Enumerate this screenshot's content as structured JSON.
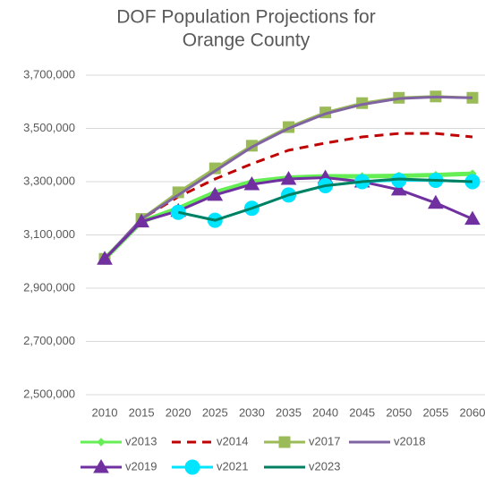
{
  "chart_data": {
    "type": "line",
    "title": [
      "DOF Population Projections for",
      "Orange County"
    ],
    "categories": [
      "2010",
      "2015",
      "2020",
      "2025",
      "2030",
      "2035",
      "2040",
      "2045",
      "2050",
      "2055",
      "2060"
    ],
    "ylim": [
      2500000,
      3700000
    ],
    "yticks": [
      {
        "value": 2500000,
        "label": "2,500,000"
      },
      {
        "value": 2700000,
        "label": "2,700,000"
      },
      {
        "value": 2900000,
        "label": "2,900,000"
      },
      {
        "value": 3100000,
        "label": "3,100,000"
      },
      {
        "value": 3300000,
        "label": "3,300,000"
      },
      {
        "value": 3500000,
        "label": "3,500,000"
      },
      {
        "value": 3700000,
        "label": "3,700,000"
      }
    ],
    "grid": true,
    "legend": "bottom",
    "series": [
      {
        "name": "v2013",
        "color": "#66ee55",
        "marker": "diamond",
        "values": [
          3010000,
          3150000,
          3200000,
          3260000,
          3300000,
          3315000,
          3320000,
          3320000,
          3322000,
          3325000,
          3330000
        ]
      },
      {
        "name": "v2014",
        "color": "#c00000",
        "dash": true,
        "values": [
          3010000,
          3160000,
          3243000,
          3310000,
          3367000,
          3418000,
          3445000,
          3468000,
          3481000,
          3481000,
          3468000
        ]
      },
      {
        "name": "v2017",
        "color": "#9bbb59",
        "marker": "square",
        "values": [
          3010000,
          3160000,
          3260000,
          3350000,
          3435000,
          3505000,
          3560000,
          3595000,
          3615000,
          3620000,
          3615000
        ]
      },
      {
        "name": "v2018",
        "color": "#8064a2",
        "values": [
          3010000,
          3160000,
          3250000,
          3340000,
          3430000,
          3500000,
          3555000,
          3590000,
          3612000,
          3618000,
          3615000
        ]
      },
      {
        "name": "v2019",
        "color": "#7030a0",
        "marker": "triangle",
        "values": [
          3010000,
          3150000,
          3190000,
          3250000,
          3290000,
          3310000,
          3315000,
          3300000,
          3270000,
          3220000,
          3160000
        ]
      },
      {
        "name": "v2021",
        "color": "#00e5ff",
        "marker": "circle",
        "values": [
          null,
          null,
          3185000,
          3155000,
          3200000,
          3250000,
          3285000,
          3300000,
          3305000,
          3305000,
          3300000
        ]
      },
      {
        "name": "v2023",
        "color": "#008060",
        "values": [
          null,
          null,
          3185000,
          3155000,
          3200000,
          3250000,
          3285000,
          3300000,
          3310000,
          3305000,
          3300000
        ]
      }
    ]
  }
}
